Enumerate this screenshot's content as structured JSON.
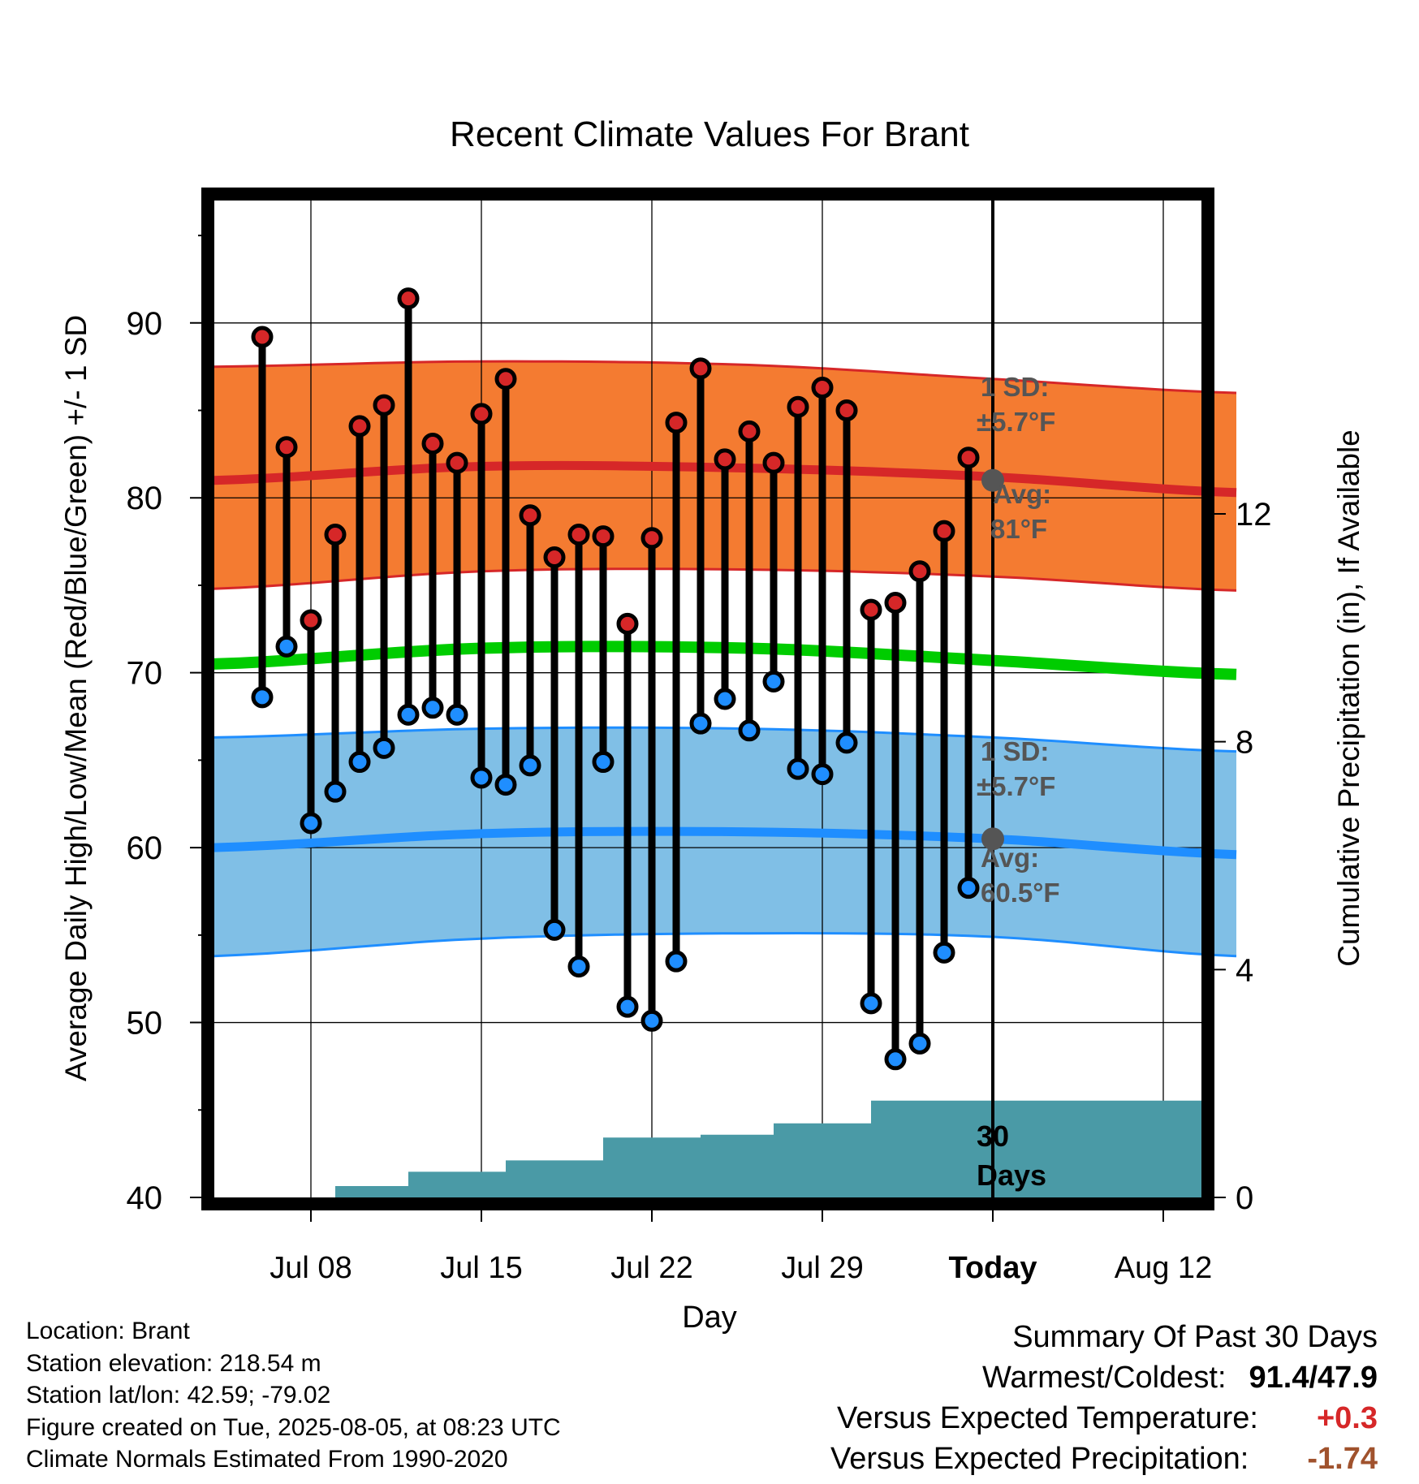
{
  "chart_data": {
    "type": "line",
    "title": "Recent Climate Values For Brant",
    "xlabel": "Day",
    "ylabel": "Average Daily High/Low/Mean (Red/Blue/Green) +/- 1 SD",
    "y2label": "Cumulative Precipitation (in), If Available",
    "ylim": [
      40,
      97
    ],
    "y2lim": [
      0,
      17.5
    ],
    "yticks": [
      40,
      50,
      60,
      70,
      80,
      90
    ],
    "y2ticks": [
      0,
      4,
      8,
      12
    ],
    "x_range_days": [
      "Jul 04",
      "Aug 15"
    ],
    "x_tick_labels": [
      "Jul 08",
      "Jul 15",
      "Jul 22",
      "Jul 29",
      "Today",
      "Aug 12"
    ],
    "grid": true,
    "days": [
      "Jul 06",
      "Jul 07",
      "Jul 08",
      "Jul 09",
      "Jul 10",
      "Jul 11",
      "Jul 12",
      "Jul 13",
      "Jul 14",
      "Jul 15",
      "Jul 16",
      "Jul 17",
      "Jul 18",
      "Jul 19",
      "Jul 20",
      "Jul 21",
      "Jul 22",
      "Jul 23",
      "Jul 24",
      "Jul 25",
      "Jul 26",
      "Jul 27",
      "Jul 28",
      "Jul 29",
      "Jul 30",
      "Jul 31",
      "Aug 01",
      "Aug 02",
      "Aug 03",
      "Aug 04"
    ],
    "highs": [
      89.2,
      82.9,
      73.0,
      77.9,
      84.1,
      85.3,
      91.4,
      83.1,
      82.0,
      84.8,
      86.8,
      79.0,
      76.6,
      77.9,
      77.8,
      72.8,
      77.7,
      84.3,
      87.4,
      82.2,
      83.8,
      82.0,
      85.2,
      86.3,
      85.0,
      73.6,
      74.0,
      75.8,
      78.1,
      82.3
    ],
    "lows": [
      68.6,
      71.5,
      61.4,
      63.2,
      64.9,
      65.7,
      67.6,
      68.0,
      67.6,
      64.0,
      63.6,
      64.7,
      55.3,
      53.2,
      64.9,
      50.9,
      50.1,
      53.5,
      67.1,
      68.5,
      66.7,
      69.5,
      64.5,
      64.2,
      66.0,
      51.1,
      47.9,
      48.8,
      54.0,
      57.7
    ],
    "normals": {
      "high_avg": [
        81.0,
        81.8,
        81.7,
        81.2,
        80.3
      ],
      "high_upper": [
        87.5,
        87.8,
        87.6,
        86.8,
        86.0
      ],
      "high_lower": [
        74.8,
        75.8,
        75.9,
        75.5,
        74.7
      ],
      "mean_avg": [
        70.5,
        71.4,
        71.4,
        70.7,
        69.9
      ],
      "low_avg": [
        60.0,
        60.8,
        60.9,
        60.5,
        59.6
      ],
      "low_upper": [
        66.3,
        66.8,
        66.8,
        66.3,
        65.5
      ],
      "low_lower": [
        53.8,
        54.8,
        55.1,
        54.9,
        53.8
      ],
      "x_days": [
        "Jul 04",
        "Jul 15",
        "Jul 26",
        "Aug 05",
        "Aug 15"
      ]
    },
    "precip_cumulative": {
      "days": [
        "Jul 08",
        "Jul 09",
        "Jul 10",
        "Jul 11",
        "Jul 12",
        "Jul 13",
        "Jul 14",
        "Jul 15",
        "Jul 16",
        "Jul 17",
        "Jul 18",
        "Jul 19",
        "Jul 20",
        "Jul 21",
        "Jul 22",
        "Jul 23",
        "Jul 24",
        "Jul 25",
        "Jul 26",
        "Jul 27",
        "Jul 28",
        "Jul 29",
        "Jul 30",
        "Jul 31",
        "Aug 01",
        "Aug 15"
      ],
      "values": [
        0.0,
        0.2,
        0.2,
        0.2,
        0.45,
        0.45,
        0.45,
        0.45,
        0.65,
        0.65,
        0.65,
        0.65,
        1.05,
        1.05,
        1.05,
        1.05,
        1.1,
        1.1,
        1.1,
        1.3,
        1.3,
        1.3,
        1.3,
        1.7,
        1.7,
        1.7
      ]
    },
    "annotations": {
      "high_sd": "1 SD:",
      "high_sd_value": "±5.7°F",
      "high_avg_label": "Avg:",
      "high_avg_value": "81°F",
      "low_sd": "1 SD:",
      "low_sd_value": "±5.7°F",
      "low_avg_label": "Avg:",
      "low_avg_value": "60.5°F",
      "precip_days_1": "30",
      "precip_days_2": "Days"
    },
    "today_marker": {
      "high_avg": 81.0,
      "low_avg": 60.5
    },
    "colors": {
      "high_band": "#f47b31",
      "high_line": "#d62728",
      "mean_line": "#00cc00",
      "low_band": "#80bfe6",
      "low_line": "#1f8eff",
      "precip": "#4a9aa6",
      "high_dot": "#d62728",
      "low_dot": "#1f8eff",
      "annotation": "#555555"
    }
  },
  "footer": {
    "location": "Location: Brant",
    "elevation": "Station elevation: 218.54 m",
    "latlon": "Station lat/lon: 42.59; -79.02",
    "created": "Figure created on Tue, 2025-08-05, at 08:23 UTC",
    "normals": "Climate Normals Estimated From 1990-2020"
  },
  "summary": {
    "title": "Summary Of Past 30 Days",
    "warm_cold_label": "Warmest/Coldest:",
    "warm_cold_value": "91.4/47.9",
    "temp_label": "Versus Expected Temperature:",
    "temp_value": "+0.3",
    "precip_label": "Versus Expected Precipitation:",
    "precip_value": "-1.74"
  }
}
